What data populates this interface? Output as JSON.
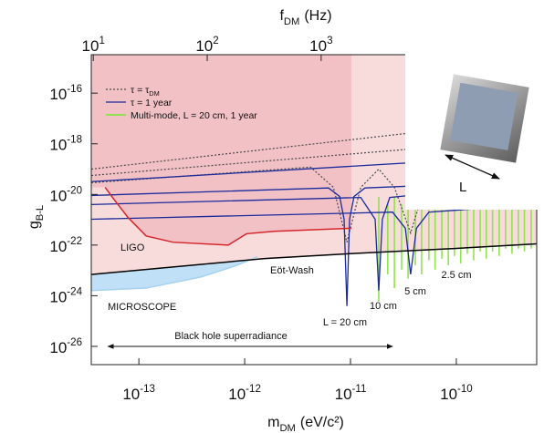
{
  "chart_data": {
    "type": "line",
    "x_label": {
      "text": "m",
      "sub": "DM",
      "unit": "(eV/c²)"
    },
    "y_label": {
      "text": "g",
      "sub": "B-L"
    },
    "xscale": "log",
    "yscale": "log",
    "xlim": [
      3.55e-14,
      5.75e-10
    ],
    "xticks": [
      {
        "value": 1e-13,
        "label": "10",
        "sup": "-13"
      },
      {
        "value": 1e-12,
        "label": "10",
        "sup": "-12"
      },
      {
        "value": 1e-11,
        "label": "10",
        "sup": "-11"
      },
      {
        "value": 1e-10,
        "label": "10",
        "sup": "-10"
      }
    ],
    "ylim": [
      1.9e-27,
      3.3e-15
    ],
    "yticks": [
      {
        "value": 1e-16,
        "label": "10",
        "sup": "-16"
      },
      {
        "value": 1e-18,
        "label": "10",
        "sup": "-18"
      },
      {
        "value": 1e-20,
        "label": "10",
        "sup": "-20"
      },
      {
        "value": 1e-22,
        "label": "10",
        "sup": "-22"
      },
      {
        "value": 1e-24,
        "label": "10",
        "sup": "-24"
      },
      {
        "value": 1e-26,
        "label": "10",
        "sup": "-26"
      }
    ],
    "top_axis": {
      "label": {
        "text": "f",
        "sub": "DM",
        "unit": "(Hz)"
      },
      "scale": "log",
      "xlim": [
        9.6,
        78000
      ],
      "xticks": [
        {
          "value": 10,
          "label": "10",
          "sup": "1"
        },
        {
          "value": 100,
          "label": "10",
          "sup": "2"
        },
        {
          "value": 1000,
          "label": "10",
          "sup": "3"
        }
      ]
    },
    "constraints": [
      {
        "label": "MICROSCOPE",
        "fill": "#bfe0f6",
        "line": "#a6d2f0",
        "side": "above",
        "x": [
          3.55e-14,
          1.17e-13,
          3.85e-13,
          8.5e-13,
          1.32e-12
        ],
        "values": [
          1.6e-24,
          2e-24,
          5.5e-24,
          1.6e-23,
          3.5e-23
        ]
      },
      {
        "label": "Eöt-Wash",
        "fill": "#f8dcdc",
        "line": "#000000",
        "side": "above",
        "x": [
          3.55e-14,
          1.55e-12,
          9.2e-12,
          1e-10,
          5.75e-10
        ],
        "values": [
          6.9e-24,
          2.95e-23,
          4.5e-23,
          7.4e-23,
          1.12e-22
        ]
      },
      {
        "label": "LIGO",
        "fill": "#f1c1c5",
        "line": "#d4262b",
        "side": "above",
        "x": [
          4.8e-14,
          5.8e-14,
          7.9e-14,
          1.17e-13,
          2.1e-13,
          7e-13,
          1.04e-12,
          1.89e-12,
          1.02e-11
        ],
        "values": [
          1.9e-20,
          6.5e-21,
          1.23e-21,
          2.3e-22,
          1.3e-22,
          1e-22,
          2.8e-22,
          3.5e-22,
          4.6e-22
        ]
      }
    ],
    "series": [
      {
        "name": "τ = τ",
        "name_sub": "DM",
        "color": "#4a4a4a",
        "style": "dotted",
        "curves": [
          {
            "x": [
              3.55e-14,
              5.75e-10
            ],
            "values": [
              1e-19,
              9.8e-18
            ]
          },
          {
            "x": [
              3.55e-14,
              5.75e-10
            ],
            "values": [
              5.6e-20,
              1.6e-18
            ]
          },
          {
            "x": [
              3.55e-14,
              4.2e-12,
              6.9e-12,
              9.25e-12,
              1.25e-11,
              1.85e-11,
              2.6e-11,
              3.7e-11,
              5e-11,
              8.2e-11,
              5.75e-10
            ],
            "values": [
              2.9e-20,
              1.2e-19,
              1.9e-20,
              1.3e-22,
              1.9e-20,
              1e-19,
              1.9e-20,
              3e-22,
              1.9e-20,
              2.3e-19,
              8.1e-19
            ]
          }
        ]
      },
      {
        "name": "τ = 1 year",
        "color": "#1b2a9c",
        "style": "solid",
        "curves": [
          {
            "x": [
              3.55e-14,
              5.75e-10
            ],
            "values": [
              3.2e-20,
              3.5e-19
            ]
          },
          {
            "x": [
              3.55e-14,
              6.2e-12,
              7.9e-12,
              8.7e-12,
              9.25e-12,
              9.8e-12,
              1.08e-11,
              1.37e-11,
              5.75e-10
            ],
            "values": [
              9.1e-21,
              1.8e-20,
              8.3e-21,
              1.05e-21,
              3.9e-25,
              1.05e-21,
              8.3e-21,
              1.8e-20,
              3.4e-20
            ]
          },
          {
            "x": [
              3.55e-14,
              1.25e-11,
              1.71e-11,
              1.85e-11,
              2e-11,
              2.35e-11,
              5.75e-10
            ],
            "values": [
              4e-21,
              7.6e-21,
              1.05e-21,
              1.6e-24,
              1.05e-21,
              7.6e-21,
              2.9e-20
            ]
          },
          {
            "x": [
              3.55e-14,
              2.5e-11,
              3.3e-11,
              3.7e-11,
              4.2e-11,
              5.5e-11,
              5.75e-10
            ],
            "values": [
              1.05e-21,
              2e-21,
              4.6e-22,
              7e-24,
              4.6e-22,
              2e-21,
              4e-21
            ]
          }
        ]
      },
      {
        "name": "Multi-mode, L = 20 cm, 1 year",
        "color": "#8fe34e",
        "style": "spikes",
        "x": [
          1.85e-11,
          2.25e-11,
          2.6e-11,
          3.04e-11,
          3.5e-11,
          4.1e-11,
          4.7e-11,
          5.5e-11,
          6.3e-11,
          7.3e-11,
          8.4e-11,
          9.6e-11,
          1.1e-10,
          1.27e-10,
          1.46e-10,
          1.68e-10,
          1.92e-10,
          2.2e-10,
          2.54e-10,
          2.92e-10,
          3.36e-10,
          3.86e-10,
          4.4e-10,
          5.1e-10
        ],
        "top": [
          8e-21,
          4e-21,
          8e-21,
          4e-21,
          8e-21,
          4e-21,
          8e-21,
          4e-21,
          8e-21,
          4e-21,
          8e-21,
          4e-21,
          8e-21,
          4e-21,
          8e-21,
          4e-21,
          8e-21,
          4e-21,
          8e-21,
          4e-21,
          8e-21,
          4e-21,
          8e-21,
          4e-21
        ],
        "bottom": [
          5.9e-25,
          7e-24,
          2e-24,
          1.07e-23,
          4.7e-24,
          1.6e-23,
          7e-24,
          2.5e-23,
          1.07e-23,
          2.9e-23,
          1.6e-23,
          3.7e-23,
          1.9e-23,
          4.5e-23,
          2.5e-23,
          5.6e-23,
          2.9e-23,
          5.6e-23,
          3.7e-23,
          7.2e-23,
          4.5e-23,
          7.2e-23,
          5.6e-23,
          7.2e-23
        ]
      }
    ],
    "annotations": [
      "L = 20 cm",
      "10 cm",
      "5 cm",
      "2.5 cm"
    ],
    "superradiance": {
      "label": "Black hole superradiance",
      "xrange": [
        5.1e-14,
        2.5e-11
      ]
    },
    "legend": "upper left",
    "inset": {
      "label": "L"
    }
  }
}
